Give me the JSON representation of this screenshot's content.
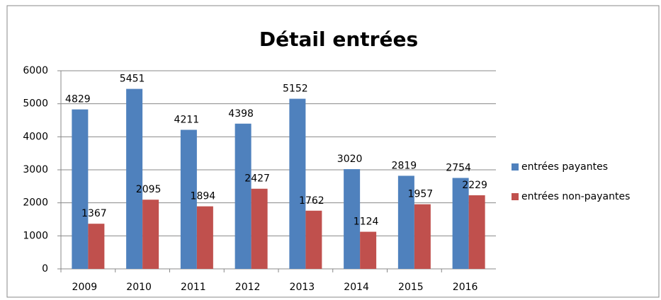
{
  "chart_data": {
    "type": "bar",
    "title": "Détail entrées",
    "categories": [
      "2009",
      "2010",
      "2011",
      "2012",
      "2013",
      "2014",
      "2015",
      "2016"
    ],
    "series": [
      {
        "name": "entrées payantes",
        "color": "#4f81bd",
        "values": [
          4829,
          5451,
          4211,
          4398,
          5152,
          3020,
          2819,
          2754
        ]
      },
      {
        "name": "entrées non-payantes",
        "color": "#c0504d",
        "values": [
          1367,
          2095,
          1894,
          2427,
          1762,
          1124,
          1957,
          2229
        ]
      }
    ],
    "ylim": [
      0,
      6000
    ],
    "yticks": [
      0,
      1000,
      2000,
      3000,
      4000,
      5000,
      6000
    ],
    "grid": true,
    "legend": "right"
  }
}
